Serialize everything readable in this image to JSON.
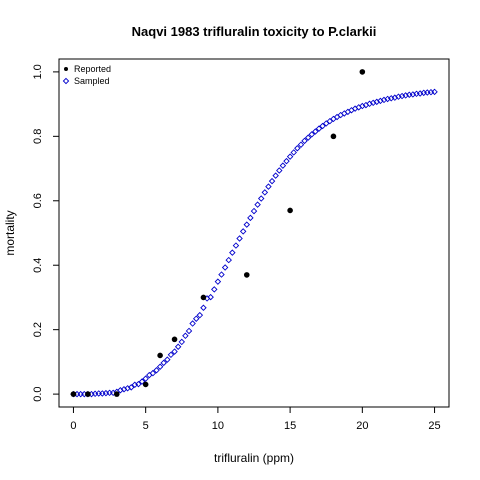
{
  "chart_data": {
    "type": "scatter",
    "title": "Naqvi 1983 trifluralin toxicity to P.clarkii",
    "xlabel": "trifluralin (ppm)",
    "ylabel": "mortality",
    "xlim": [
      -1,
      26
    ],
    "ylim": [
      -0.04,
      1.04
    ],
    "x_ticks": [
      0,
      5,
      10,
      15,
      20,
      25
    ],
    "y_ticks": [
      0.0,
      0.2,
      0.4,
      0.6,
      0.8,
      1.0
    ],
    "x_tick_labels": [
      "0",
      "5",
      "10",
      "15",
      "20",
      "25"
    ],
    "y_tick_labels": [
      "0.0",
      "0.2",
      "0.4",
      "0.6",
      "0.8",
      "1.0"
    ],
    "legend": {
      "position": "top-left",
      "entries": [
        "Reported",
        "Sampled"
      ]
    },
    "series": [
      {
        "name": "Reported",
        "marker": "filled-circle",
        "color": "#000000",
        "x": [
          0,
          1,
          3,
          5,
          6,
          7,
          9,
          12,
          15,
          18,
          20
        ],
        "y": [
          0.0,
          0.0,
          0.0,
          0.03,
          0.12,
          0.17,
          0.3,
          0.37,
          0.57,
          0.8,
          1.0
        ]
      },
      {
        "name": "Sampled",
        "marker": "open-diamond",
        "color": "#0000cc",
        "x": [
          0.0,
          0.25,
          0.5,
          0.75,
          1.0,
          1.25,
          1.5,
          1.75,
          2.0,
          2.25,
          2.5,
          2.75,
          3.0,
          3.25,
          3.5,
          3.75,
          4.0,
          4.25,
          4.5,
          4.75,
          5.0,
          5.25,
          5.5,
          5.75,
          6.0,
          6.25,
          6.5,
          6.75,
          7.0,
          7.25,
          7.5,
          7.75,
          8.0,
          8.25,
          8.5,
          8.75,
          9.0,
          9.25,
          9.5,
          9.75,
          10.0,
          10.25,
          10.5,
          10.75,
          11.0,
          11.25,
          11.5,
          11.75,
          12.0,
          12.25,
          12.5,
          12.75,
          13.0,
          13.25,
          13.5,
          13.75,
          14.0,
          14.25,
          14.5,
          14.75,
          15.0,
          15.25,
          15.5,
          15.75,
          16.0,
          16.25,
          16.5,
          16.75,
          17.0,
          17.25,
          17.5,
          17.75,
          18.0,
          18.25,
          18.5,
          18.75,
          19.0,
          19.25,
          19.5,
          19.75,
          20.0,
          20.25,
          20.5,
          20.75,
          21.0,
          21.25,
          21.5,
          21.75,
          22.0,
          22.25,
          22.5,
          22.75,
          23.0,
          23.25,
          23.5,
          23.75,
          24.0,
          24.25,
          24.5,
          24.75,
          25.0
        ],
        "y": [
          0.0,
          0.0,
          0.0,
          0.0,
          0.0,
          0.0,
          0.001,
          0.002,
          0.002,
          0.003,
          0.004,
          0.004,
          0.007,
          0.012,
          0.015,
          0.018,
          0.021,
          0.029,
          0.031,
          0.039,
          0.048,
          0.059,
          0.065,
          0.074,
          0.085,
          0.097,
          0.107,
          0.122,
          0.132,
          0.147,
          0.162,
          0.181,
          0.196,
          0.219,
          0.234,
          0.245,
          0.268,
          0.297,
          0.301,
          0.325,
          0.349,
          0.371,
          0.393,
          0.416,
          0.439,
          0.461,
          0.483,
          0.505,
          0.526,
          0.547,
          0.568,
          0.588,
          0.607,
          0.626,
          0.644,
          0.661,
          0.678,
          0.694,
          0.709,
          0.723,
          0.737,
          0.75,
          0.763,
          0.774,
          0.786,
          0.796,
          0.806,
          0.815,
          0.824,
          0.832,
          0.84,
          0.847,
          0.854,
          0.86,
          0.866,
          0.871,
          0.876,
          0.881,
          0.886,
          0.89,
          0.894,
          0.897,
          0.901,
          0.904,
          0.907,
          0.91,
          0.913,
          0.916,
          0.918,
          0.92,
          0.923,
          0.925,
          0.927,
          0.929,
          0.93,
          0.932,
          0.933,
          0.935,
          0.936,
          0.937,
          0.938
        ]
      }
    ]
  }
}
